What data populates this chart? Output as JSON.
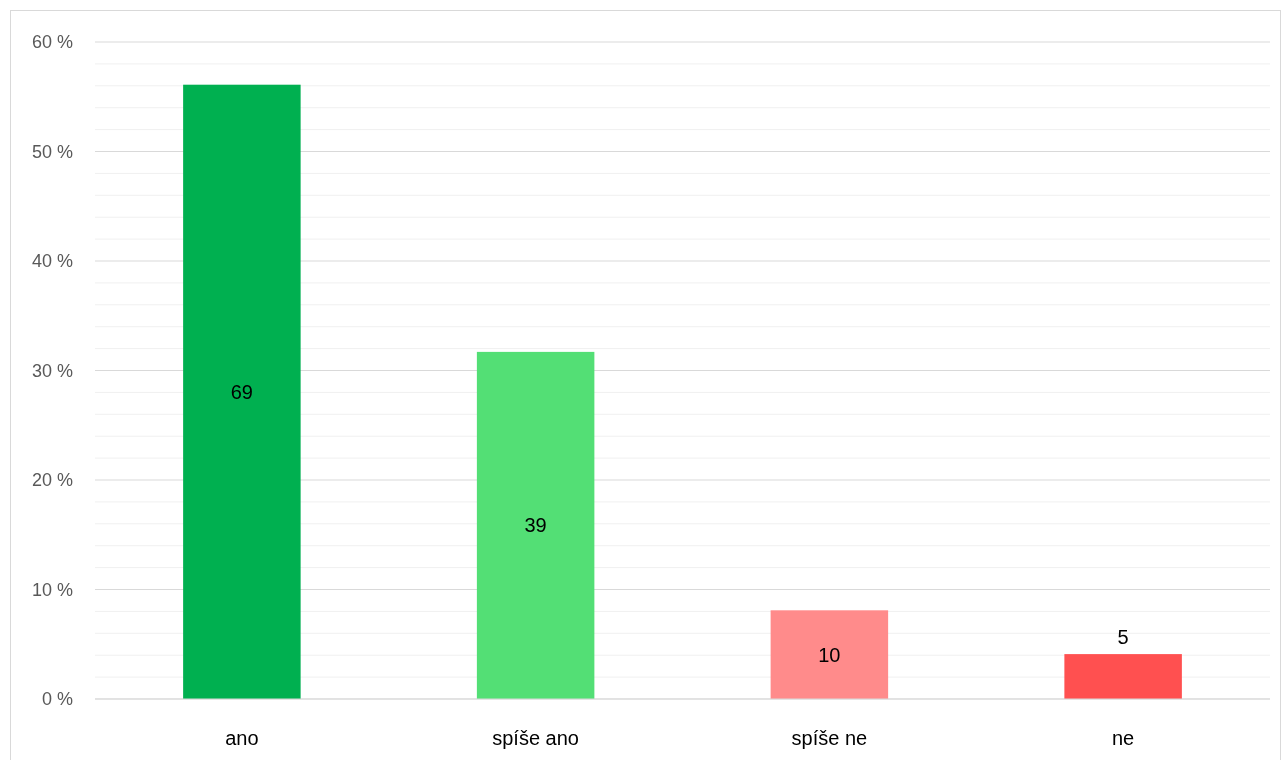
{
  "chart_data": {
    "type": "bar",
    "categories": [
      "ano",
      "spíše ano",
      "spíše ne",
      "ne"
    ],
    "values": [
      56.1,
      31.7,
      8.1,
      4.1
    ],
    "colors": [
      "#00b050",
      "#53df75",
      "#ff8b8b",
      "#ff5050"
    ],
    "annotations": [
      "69",
      "39",
      "10",
      "5"
    ],
    "ylim": [
      0,
      60
    ],
    "yticks": [
      {
        "value": 0,
        "label": "0 %"
      },
      {
        "value": 2,
        "label": null
      },
      {
        "value": 4,
        "label": null
      },
      {
        "value": 6,
        "label": null
      },
      {
        "value": 8,
        "label": null
      },
      {
        "value": 10,
        "label": "10 %"
      },
      {
        "value": 12,
        "label": null
      },
      {
        "value": 14,
        "label": null
      },
      {
        "value": 16,
        "label": null
      },
      {
        "value": 18,
        "label": null
      },
      {
        "value": 20,
        "label": "20 %"
      },
      {
        "value": 22,
        "label": null
      },
      {
        "value": 24,
        "label": null
      },
      {
        "value": 26,
        "label": null
      },
      {
        "value": 28,
        "label": null
      },
      {
        "value": 30,
        "label": "30 %"
      },
      {
        "value": 32,
        "label": null
      },
      {
        "value": 34,
        "label": null
      },
      {
        "value": 36,
        "label": null
      },
      {
        "value": 38,
        "label": null
      },
      {
        "value": 40,
        "label": "40 %"
      },
      {
        "value": 42,
        "label": null
      },
      {
        "value": 44,
        "label": null
      },
      {
        "value": 46,
        "label": null
      },
      {
        "value": 48,
        "label": null
      },
      {
        "value": 50,
        "label": "50 %"
      },
      {
        "value": 52,
        "label": null
      },
      {
        "value": 54,
        "label": null
      },
      {
        "value": 56,
        "label": null
      },
      {
        "value": 58,
        "label": null
      },
      {
        "value": 60,
        "label": "60 %"
      }
    ],
    "grid": true
  }
}
